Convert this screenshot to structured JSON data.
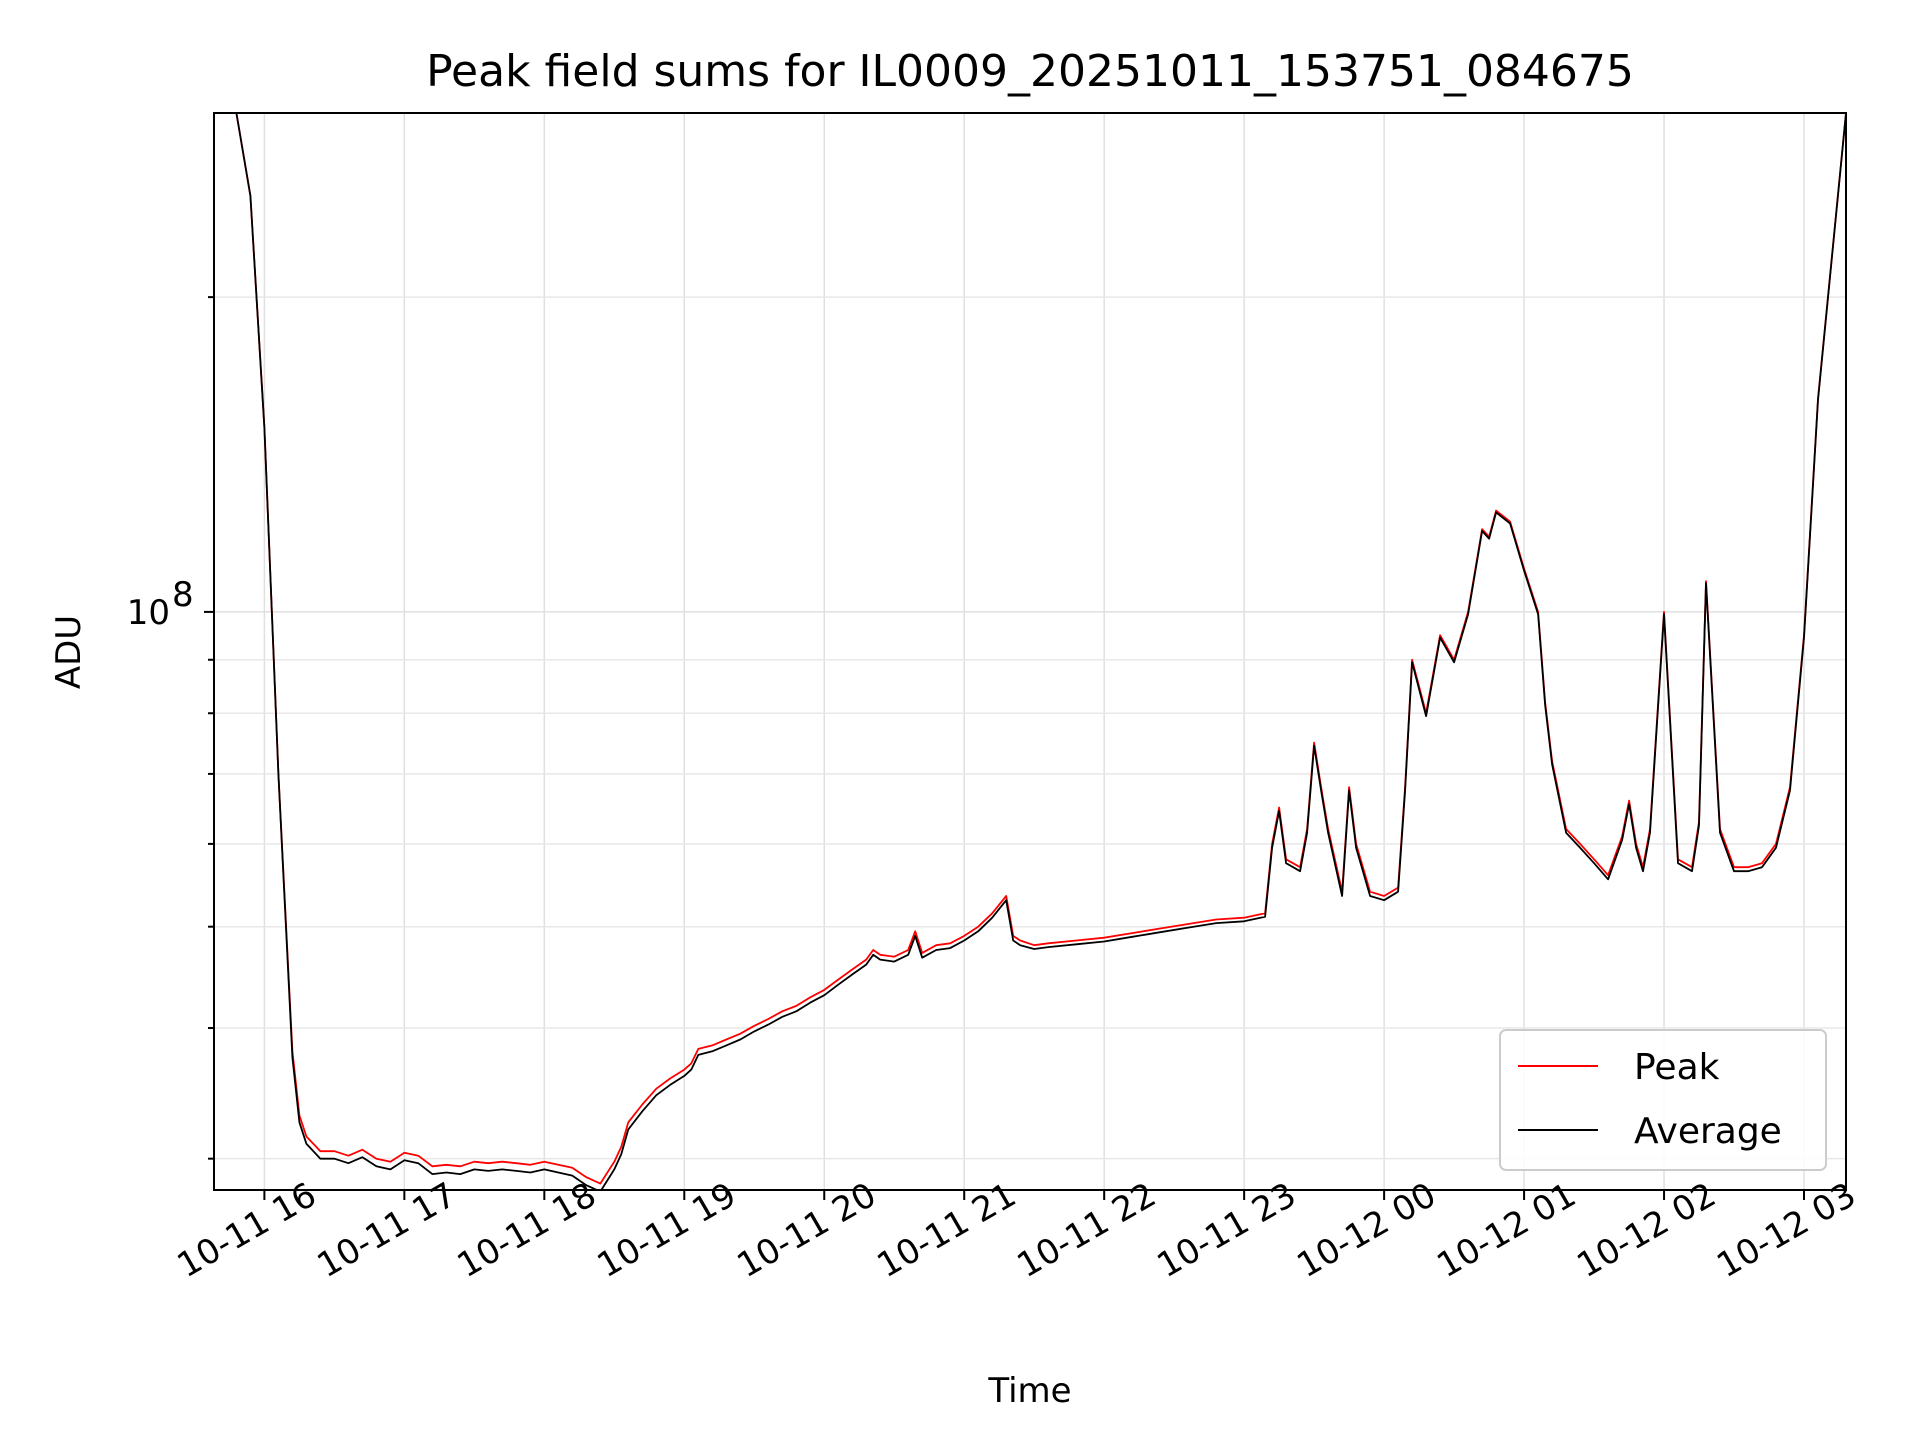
{
  "chart_data": {
    "type": "line",
    "title": "Peak field sums for IL0009_20251011_153751_084675",
    "xlabel": "Time",
    "ylabel": "ADU",
    "yscale": "log",
    "ylim": [
      28000000,
      300000000
    ],
    "xlim": [
      15.64,
      27.3
    ],
    "x_ticks": [
      16,
      17,
      18,
      19,
      20,
      21,
      22,
      23,
      24,
      25,
      26,
      27
    ],
    "x_tick_labels": [
      "10-11 16",
      "10-11 17",
      "10-11 18",
      "10-11 19",
      "10-11 20",
      "10-11 21",
      "10-11 22",
      "10-11 23",
      "10-12 00",
      "10-12 01",
      "10-12 02",
      "10-12 03"
    ],
    "y_major_ticks": [
      100000000
    ],
    "y_major_tick_labels": [
      "10",
      "8"
    ],
    "y_minor_ticks": [
      30000000,
      40000000,
      50000000,
      60000000,
      70000000,
      80000000,
      90000000,
      200000000
    ],
    "grid": true,
    "legend_position": "lower-right",
    "series": [
      {
        "name": "Peak",
        "color": "#ff0000",
        "x": [
          15.64,
          15.8,
          15.9,
          16.0,
          16.1,
          16.2,
          16.25,
          16.3,
          16.4,
          16.5,
          16.6,
          16.7,
          16.8,
          16.9,
          17.0,
          17.1,
          17.2,
          17.3,
          17.4,
          17.5,
          17.6,
          17.7,
          17.8,
          17.9,
          18.0,
          18.1,
          18.2,
          18.3,
          18.4,
          18.5,
          18.55,
          18.6,
          18.7,
          18.8,
          18.9,
          19.0,
          19.05,
          19.1,
          19.2,
          19.3,
          19.4,
          19.5,
          19.6,
          19.7,
          19.8,
          19.9,
          20.0,
          20.1,
          20.2,
          20.3,
          20.35,
          20.4,
          20.5,
          20.6,
          20.65,
          20.7,
          20.8,
          20.9,
          21.0,
          21.1,
          21.2,
          21.3,
          21.35,
          21.4,
          21.5,
          21.6,
          21.8,
          22.0,
          22.2,
          22.4,
          22.6,
          22.8,
          23.0,
          23.15,
          23.2,
          23.25,
          23.3,
          23.4,
          23.45,
          23.5,
          23.55,
          23.6,
          23.7,
          23.75,
          23.8,
          23.9,
          24.0,
          24.1,
          24.15,
          24.2,
          24.3,
          24.4,
          24.5,
          24.6,
          24.7,
          24.75,
          24.8,
          24.9,
          25.0,
          25.1,
          25.15,
          25.2,
          25.3,
          25.4,
          25.5,
          25.6,
          25.7,
          25.75,
          25.8,
          25.85,
          25.9,
          26.0,
          26.1,
          26.2,
          26.25,
          26.3,
          26.4,
          26.5,
          26.6,
          26.7,
          26.8,
          26.9,
          27.0,
          27.1,
          27.3
        ],
        "y": [
          300000000,
          300000000,
          250000000,
          150000000,
          70000000,
          38000000,
          33000000,
          31500000,
          30500000,
          30500000,
          30200000,
          30600000,
          30000000,
          29800000,
          30400000,
          30200000,
          29500000,
          29600000,
          29500000,
          29800000,
          29700000,
          29800000,
          29700000,
          29600000,
          29800000,
          29600000,
          29400000,
          28800000,
          28400000,
          29800000,
          30800000,
          32500000,
          33800000,
          35000000,
          35800000,
          36500000,
          37000000,
          38200000,
          38500000,
          39000000,
          39500000,
          40200000,
          40800000,
          41500000,
          42000000,
          42800000,
          43500000,
          44500000,
          45500000,
          46500000,
          47500000,
          47000000,
          46800000,
          47500000,
          49500000,
          47200000,
          48000000,
          48200000,
          49000000,
          50000000,
          51500000,
          53500000,
          49000000,
          48500000,
          48000000,
          48200000,
          48500000,
          48800000,
          49300000,
          49800000,
          50300000,
          50800000,
          51000000,
          51500000,
          60000000,
          65000000,
          58000000,
          57000000,
          62000000,
          75000000,
          68000000,
          62000000,
          54000000,
          68000000,
          60000000,
          54000000,
          53500000,
          54500000,
          68000000,
          90000000,
          80000000,
          95000000,
          90000000,
          100000000,
          120000000,
          118000000,
          125000000,
          122000000,
          110000000,
          100000000,
          82000000,
          72000000,
          62000000,
          60000000,
          58000000,
          56000000,
          61000000,
          66000000,
          60000000,
          57000000,
          62000000,
          100000000,
          58000000,
          57000000,
          63000000,
          107000000,
          62000000,
          57000000,
          57000000,
          57500000,
          60000000,
          68000000,
          95000000,
          160000000,
          300000000
        ]
      },
      {
        "name": "Average",
        "color": "#000000",
        "x": [
          15.64,
          15.8,
          15.9,
          16.0,
          16.1,
          16.2,
          16.25,
          16.3,
          16.4,
          16.5,
          16.6,
          16.7,
          16.8,
          16.9,
          17.0,
          17.1,
          17.2,
          17.3,
          17.4,
          17.5,
          17.6,
          17.7,
          17.8,
          17.9,
          18.0,
          18.1,
          18.2,
          18.3,
          18.4,
          18.5,
          18.55,
          18.6,
          18.7,
          18.8,
          18.9,
          19.0,
          19.05,
          19.1,
          19.2,
          19.3,
          19.4,
          19.5,
          19.6,
          19.7,
          19.8,
          19.9,
          20.0,
          20.1,
          20.2,
          20.3,
          20.35,
          20.4,
          20.5,
          20.6,
          20.65,
          20.7,
          20.8,
          20.9,
          21.0,
          21.1,
          21.2,
          21.3,
          21.35,
          21.4,
          21.5,
          21.6,
          21.8,
          22.0,
          22.2,
          22.4,
          22.6,
          22.8,
          23.0,
          23.15,
          23.2,
          23.25,
          23.3,
          23.4,
          23.45,
          23.5,
          23.55,
          23.6,
          23.7,
          23.75,
          23.8,
          23.9,
          24.0,
          24.1,
          24.15,
          24.2,
          24.3,
          24.4,
          24.5,
          24.6,
          24.7,
          24.75,
          24.8,
          24.9,
          25.0,
          25.1,
          25.15,
          25.2,
          25.3,
          25.4,
          25.5,
          25.6,
          25.7,
          25.75,
          25.8,
          25.85,
          25.9,
          26.0,
          26.1,
          26.2,
          26.25,
          26.3,
          26.4,
          26.5,
          26.6,
          26.7,
          26.8,
          26.9,
          27.0,
          27.1,
          27.3
        ],
        "y": [
          300000000,
          300000000,
          250000000,
          150000000,
          70000000,
          37500000,
          32500000,
          31000000,
          30000000,
          30000000,
          29700000,
          30100000,
          29500000,
          29300000,
          29900000,
          29700000,
          29000000,
          29100000,
          29000000,
          29300000,
          29200000,
          29300000,
          29200000,
          29100000,
          29300000,
          29100000,
          28900000,
          28300000,
          27900000,
          29300000,
          30300000,
          32000000,
          33300000,
          34500000,
          35300000,
          36000000,
          36500000,
          37700000,
          38000000,
          38500000,
          39000000,
          39700000,
          40300000,
          41000000,
          41500000,
          42300000,
          43000000,
          44000000,
          45000000,
          46000000,
          47000000,
          46500000,
          46300000,
          47000000,
          49000000,
          46700000,
          47500000,
          47700000,
          48500000,
          49500000,
          51000000,
          53000000,
          48500000,
          48000000,
          47600000,
          47800000,
          48100000,
          48400000,
          48900000,
          49400000,
          49900000,
          50400000,
          50600000,
          51100000,
          59500000,
          64500000,
          57500000,
          56500000,
          61500000,
          74500000,
          67500000,
          61500000,
          53500000,
          67500000,
          59500000,
          53500000,
          53000000,
          54000000,
          67500000,
          89500000,
          79500000,
          94500000,
          89500000,
          99500000,
          119500000,
          117500000,
          124500000,
          121500000,
          109500000,
          99500000,
          81500000,
          71500000,
          61500000,
          59500000,
          57500000,
          55500000,
          60500000,
          65500000,
          59500000,
          56500000,
          61500000,
          99500000,
          57500000,
          56500000,
          62500000,
          106500000,
          61500000,
          56500000,
          56500000,
          57000000,
          59500000,
          67500000,
          94500000,
          159500000,
          300000000
        ]
      }
    ]
  }
}
